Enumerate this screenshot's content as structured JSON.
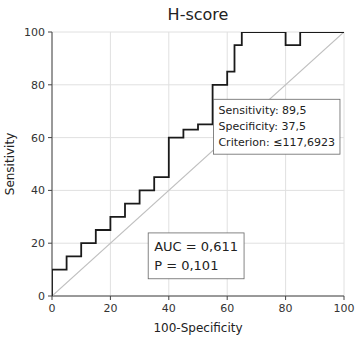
{
  "chart_data": {
    "type": "line",
    "title": "H-score",
    "xlabel": "100-Specificity",
    "ylabel": "Sensitivity",
    "xlim": [
      0,
      100
    ],
    "ylim": [
      0,
      100
    ],
    "xticks": [
      0,
      20,
      40,
      60,
      80,
      100
    ],
    "yticks": [
      0,
      20,
      40,
      60,
      80,
      100
    ],
    "grid": true,
    "series": [
      {
        "color": "#c0c0c0",
        "x": [
          0,
          100
        ],
        "values": [
          0,
          100
        ]
      },
      {
        "color": "#1a1a1a",
        "x": [
          0,
          0,
          5,
          5,
          10,
          10,
          15,
          15,
          20,
          20,
          25,
          25,
          30,
          30,
          35,
          35,
          40,
          40,
          45,
          45,
          50,
          50,
          55,
          55,
          60,
          60,
          62.5,
          62.5,
          65,
          65,
          80,
          80,
          85,
          85,
          100
        ],
        "values": [
          0,
          10,
          10,
          15,
          15,
          20,
          20,
          25,
          25,
          30,
          30,
          35,
          35,
          40,
          40,
          45,
          45,
          60,
          60,
          63,
          63,
          65,
          65,
          80,
          80,
          85,
          85,
          95,
          95,
          100,
          100,
          95,
          95,
          100,
          100
        ]
      }
    ],
    "annotations": [
      "Sensitivity: 89,5\nSpecificity: 37,5\nCriterion: ≤117,6923",
      "AUC = 0,611\nP = 0,101"
    ]
  }
}
